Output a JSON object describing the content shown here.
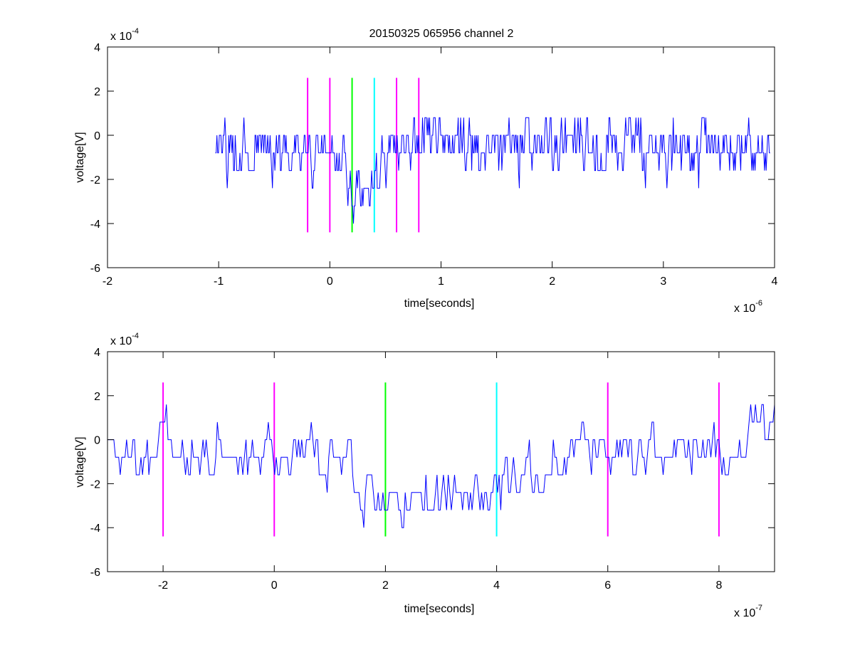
{
  "chart_data": [
    {
      "type": "line",
      "title": "20150325 065956 channel 2",
      "xlabel": "time[seconds]",
      "ylabel": "voltage[V]",
      "x_multiplier": "x 10",
      "x_exponent": "-6",
      "y_multiplier": "x 10",
      "y_exponent": "-4",
      "xlim": [
        -2,
        4
      ],
      "ylim": [
        -6,
        4
      ],
      "xticks": [
        -2,
        -1,
        0,
        1,
        2,
        3,
        4
      ],
      "yticks": [
        -6,
        -4,
        -2,
        0,
        2,
        4
      ],
      "xtick_labels": [
        "-2",
        "-1",
        "0",
        "1",
        "2",
        "3",
        "4"
      ],
      "ytick_labels": [
        "-6",
        "-4",
        "-2",
        "0",
        "2",
        "4"
      ],
      "grid": false,
      "signal": {
        "color": "#0000ff",
        "x_range": [
          -1.03,
          3.96
        ],
        "levels": [
          -4,
          -3.2,
          -2.4,
          -1.6,
          -0.8,
          0,
          0.8,
          1.6,
          2.4
        ],
        "baseline_segments": [
          {
            "x0": -1.03,
            "x1": 0.15,
            "mean": -0.6
          },
          {
            "x0": 0.15,
            "x1": 0.45,
            "mean": -2.4
          },
          {
            "x0": 0.45,
            "x1": 0.85,
            "mean": -0.7
          },
          {
            "x0": 0.85,
            "x1": 1.0,
            "mean": 0.2
          },
          {
            "x0": 1.0,
            "x1": 3.96,
            "mean": -0.5
          }
        ]
      },
      "markers": [
        {
          "x": -0.2,
          "color": "#ff00ff",
          "ymin": -4.4,
          "ymax": 2.6
        },
        {
          "x": 0.0,
          "color": "#ff00ff",
          "ymin": -4.4,
          "ymax": 2.6
        },
        {
          "x": 0.2,
          "color": "#00ff00",
          "ymin": -4.4,
          "ymax": 2.6
        },
        {
          "x": 0.4,
          "color": "#00ffff",
          "ymin": -4.4,
          "ymax": 2.6
        },
        {
          "x": 0.6,
          "color": "#ff00ff",
          "ymin": -4.4,
          "ymax": 2.6
        },
        {
          "x": 0.8,
          "color": "#ff00ff",
          "ymin": -4.4,
          "ymax": 2.6
        }
      ]
    },
    {
      "type": "line",
      "title": "",
      "xlabel": "time[seconds]",
      "ylabel": "voltage[V]",
      "x_multiplier": "x 10",
      "x_exponent": "-7",
      "y_multiplier": "x 10",
      "y_exponent": "-4",
      "xlim": [
        -3,
        9
      ],
      "ylim": [
        -6,
        4
      ],
      "xticks": [
        -2,
        0,
        2,
        4,
        6,
        8
      ],
      "yticks": [
        -6,
        -4,
        -2,
        0,
        2,
        4
      ],
      "xtick_labels": [
        "-2",
        "0",
        "2",
        "4",
        "6",
        "8"
      ],
      "ytick_labels": [
        "-6",
        "-4",
        "-2",
        "0",
        "2",
        "4"
      ],
      "grid": false,
      "signal": {
        "color": "#0000ff",
        "x_range": [
          -3,
          9
        ],
        "levels": [
          -4,
          -3.2,
          -2.4,
          -1.6,
          -0.8,
          0,
          0.8,
          1.6
        ],
        "baseline_segments": [
          {
            "x0": -3,
            "x1": 1.4,
            "mean": -0.7
          },
          {
            "x0": 1.4,
            "x1": 4.1,
            "mean": -2.6
          },
          {
            "x0": 4.1,
            "x1": 5.0,
            "mean": -1.4
          },
          {
            "x0": 5.0,
            "x1": 8.5,
            "mean": -0.6
          },
          {
            "x0": 8.5,
            "x1": 9,
            "mean": 0.6
          }
        ]
      },
      "markers": [
        {
          "x": -2,
          "color": "#ff00ff",
          "ymin": -4.4,
          "ymax": 2.6
        },
        {
          "x": 0,
          "color": "#ff00ff",
          "ymin": -4.4,
          "ymax": 2.6
        },
        {
          "x": 2,
          "color": "#00ff00",
          "ymin": -4.4,
          "ymax": 2.6
        },
        {
          "x": 4,
          "color": "#00ffff",
          "ymin": -4.4,
          "ymax": 2.6
        },
        {
          "x": 6,
          "color": "#ff00ff",
          "ymin": -4.4,
          "ymax": 2.6
        },
        {
          "x": 8,
          "color": "#ff00ff",
          "ymin": -4.4,
          "ymax": 2.6
        }
      ]
    }
  ]
}
